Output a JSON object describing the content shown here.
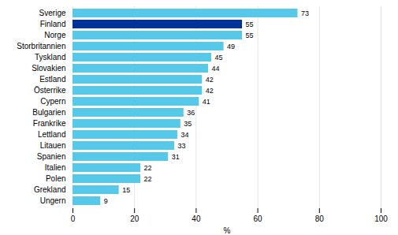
{
  "chart_data": {
    "type": "bar",
    "orientation": "horizontal",
    "categories": [
      "Sverige",
      "Finland",
      "Norge",
      "Storbritannien",
      "Tyskland",
      "Slovakien",
      "Estland",
      "Österrike",
      "Cypern",
      "Bulgarien",
      "Frankrike",
      "Lettland",
      "Litauen",
      "Spanien",
      "Italien",
      "Polen",
      "Grekland",
      "Ungern"
    ],
    "values": [
      73,
      55,
      55,
      49,
      45,
      44,
      42,
      42,
      41,
      36,
      35,
      34,
      33,
      31,
      22,
      22,
      15,
      9
    ],
    "colors": [
      "#56c8e8",
      "#003399",
      "#56c8e8",
      "#56c8e8",
      "#56c8e8",
      "#56c8e8",
      "#56c8e8",
      "#56c8e8",
      "#56c8e8",
      "#56c8e8",
      "#56c8e8",
      "#56c8e8",
      "#56c8e8",
      "#56c8e8",
      "#56c8e8",
      "#56c8e8",
      "#56c8e8",
      "#56c8e8"
    ],
    "xlabel": "%",
    "xlim": [
      0,
      100
    ],
    "xticks": [
      0,
      20,
      40,
      60,
      80,
      100
    ],
    "grid": true,
    "data_labels": true
  }
}
